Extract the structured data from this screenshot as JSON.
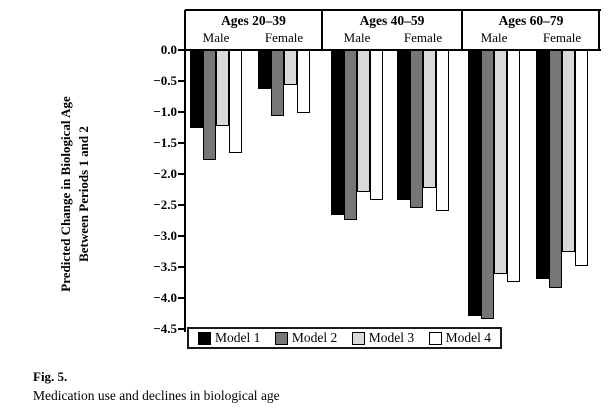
{
  "chart_data": {
    "type": "bar",
    "title": "",
    "ylabel": "Predicted Change in Biological Age Between Periods 1 and 2",
    "ylabel_lines": [
      "Predicted Change in Biological Age",
      "Between Periods 1 and 2"
    ],
    "ylim": [
      -4.5,
      0.0
    ],
    "ytick_step": 0.5,
    "ytick_labels": [
      "0.0",
      "−0.5",
      "−1.0",
      "−1.5",
      "−2.0",
      "−2.5",
      "−3.0",
      "−3.5",
      "−4.0",
      "−4.5"
    ],
    "grid": false,
    "legend_position": "bottom",
    "series": [
      {
        "name": "Model 1",
        "color": "#000000"
      },
      {
        "name": "Model 2",
        "color": "#767676"
      },
      {
        "name": "Model 3",
        "color": "#d9d9d9"
      },
      {
        "name": "Model 4",
        "color": "#ffffff"
      }
    ],
    "groups": [
      {
        "age": "Ages 20–39",
        "bars": [
          {
            "sex": "Male",
            "values": [
              -1.26,
              -1.77,
              -1.23,
              -1.66
            ]
          },
          {
            "sex": "Female",
            "values": [
              -0.63,
              -1.07,
              -0.56,
              -1.01
            ]
          }
        ]
      },
      {
        "age": "Ages 40–59",
        "bars": [
          {
            "sex": "Male",
            "values": [
              -2.65,
              -2.74,
              -2.29,
              -2.42
            ]
          },
          {
            "sex": "Female",
            "values": [
              -2.42,
              -2.55,
              -2.23,
              -2.6
            ]
          }
        ]
      },
      {
        "age": "Ages 60–79",
        "bars": [
          {
            "sex": "Male",
            "values": [
              -4.29,
              -4.33,
              -3.6,
              -3.73
            ]
          },
          {
            "sex": "Female",
            "values": [
              -3.69,
              -3.83,
              -3.26,
              -3.48
            ]
          }
        ]
      }
    ]
  },
  "caption": {
    "label": "Fig. 5.",
    "title": "Medication use and declines in biological age"
  }
}
